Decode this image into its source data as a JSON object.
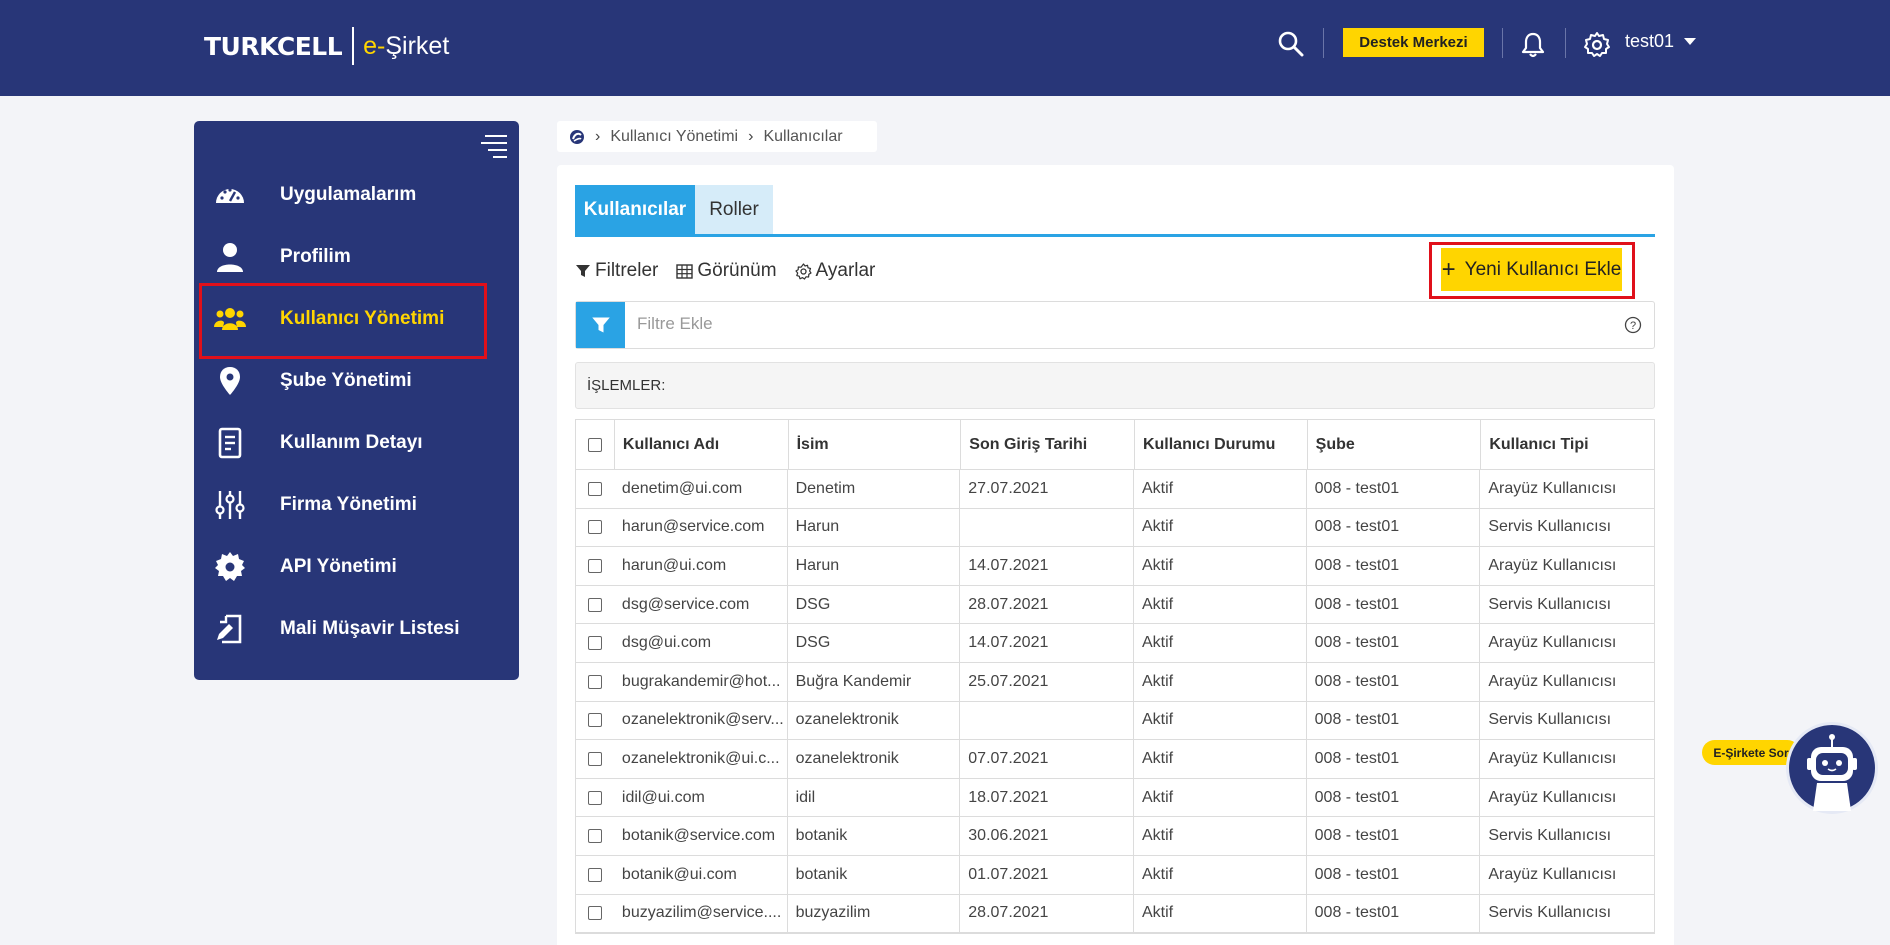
{
  "header": {
    "brand": "TURKCELL",
    "product_e": "e-",
    "product_name": "Şirket",
    "support_button": "Destek Merkezi",
    "username": "test01",
    "colors": {
      "bar": "#283678",
      "accent": "#ffd500"
    }
  },
  "sidebar": {
    "items": [
      {
        "label": "Uygulamalarım",
        "icon": "dashboard-icon"
      },
      {
        "label": "Profilim",
        "icon": "user-icon"
      },
      {
        "label": "Kullanıcı Yönetimi",
        "icon": "users-icon",
        "active": true
      },
      {
        "label": "Şube Yönetimi",
        "icon": "location-pin-icon"
      },
      {
        "label": "Kullanım Detayı",
        "icon": "document-icon"
      },
      {
        "label": "Firma Yönetimi",
        "icon": "sliders-icon"
      },
      {
        "label": "API Yönetimi",
        "icon": "gear-icon"
      },
      {
        "label": "Mali Müşavir Listesi",
        "icon": "edit-document-icon"
      }
    ]
  },
  "breadcrumb": {
    "items": [
      "Kullanıcı Yönetimi",
      "Kullanıcılar"
    ]
  },
  "tabs": {
    "users": "Kullanıcılar",
    "roles": "Roller"
  },
  "toolbar": {
    "filters": "Filtreler",
    "view": "Görünüm",
    "settings": "Ayarlar",
    "new_user": "Yeni Kullanıcı Ekle"
  },
  "filter": {
    "placeholder": "Filtre Ekle"
  },
  "actions_label": "İŞLEMLER:",
  "table": {
    "columns": [
      "Kullanıcı Adı",
      "İsim",
      "Son Giriş Tarihi",
      "Kullanıcı Durumu",
      "Şube",
      "Kullanıcı Tipi"
    ],
    "rows": [
      [
        "denetim@ui.com",
        "Denetim",
        "27.07.2021",
        "Aktif",
        "008 - test01",
        "Arayüz Kullanıcısı"
      ],
      [
        "harun@service.com",
        "Harun",
        "",
        "Aktif",
        "008 - test01",
        "Servis Kullanıcısı"
      ],
      [
        "harun@ui.com",
        "Harun",
        "14.07.2021",
        "Aktif",
        "008 - test01",
        "Arayüz Kullanıcısı"
      ],
      [
        "dsg@service.com",
        "DSG",
        "28.07.2021",
        "Aktif",
        "008 - test01",
        "Servis Kullanıcısı"
      ],
      [
        "dsg@ui.com",
        "DSG",
        "14.07.2021",
        "Aktif",
        "008 - test01",
        "Arayüz Kullanıcısı"
      ],
      [
        "bugrakandemir@hot...",
        "Buğra Kandemir",
        "25.07.2021",
        "Aktif",
        "008 - test01",
        "Arayüz Kullanıcısı"
      ],
      [
        "ozanelektronik@serv...",
        "ozanelektronik",
        "",
        "Aktif",
        "008 - test01",
        "Servis Kullanıcısı"
      ],
      [
        "ozanelektronik@ui.c...",
        "ozanelektronik",
        "07.07.2021",
        "Aktif",
        "008 - test01",
        "Arayüz Kullanıcısı"
      ],
      [
        "idil@ui.com",
        "idil",
        "18.07.2021",
        "Aktif",
        "008 - test01",
        "Arayüz Kullanıcısı"
      ],
      [
        "botanik@service.com",
        "botanik",
        "30.06.2021",
        "Aktif",
        "008 - test01",
        "Servis Kullanıcısı"
      ],
      [
        "botanik@ui.com",
        "botanik",
        "01.07.2021",
        "Aktif",
        "008 - test01",
        "Arayüz Kullanıcısı"
      ],
      [
        "buzyazilim@service....",
        "buzyazilim",
        "28.07.2021",
        "Aktif",
        "008 - test01",
        "Servis Kullanıcısı"
      ]
    ]
  },
  "chatbot": {
    "label": "E-Şirkete Sor"
  }
}
